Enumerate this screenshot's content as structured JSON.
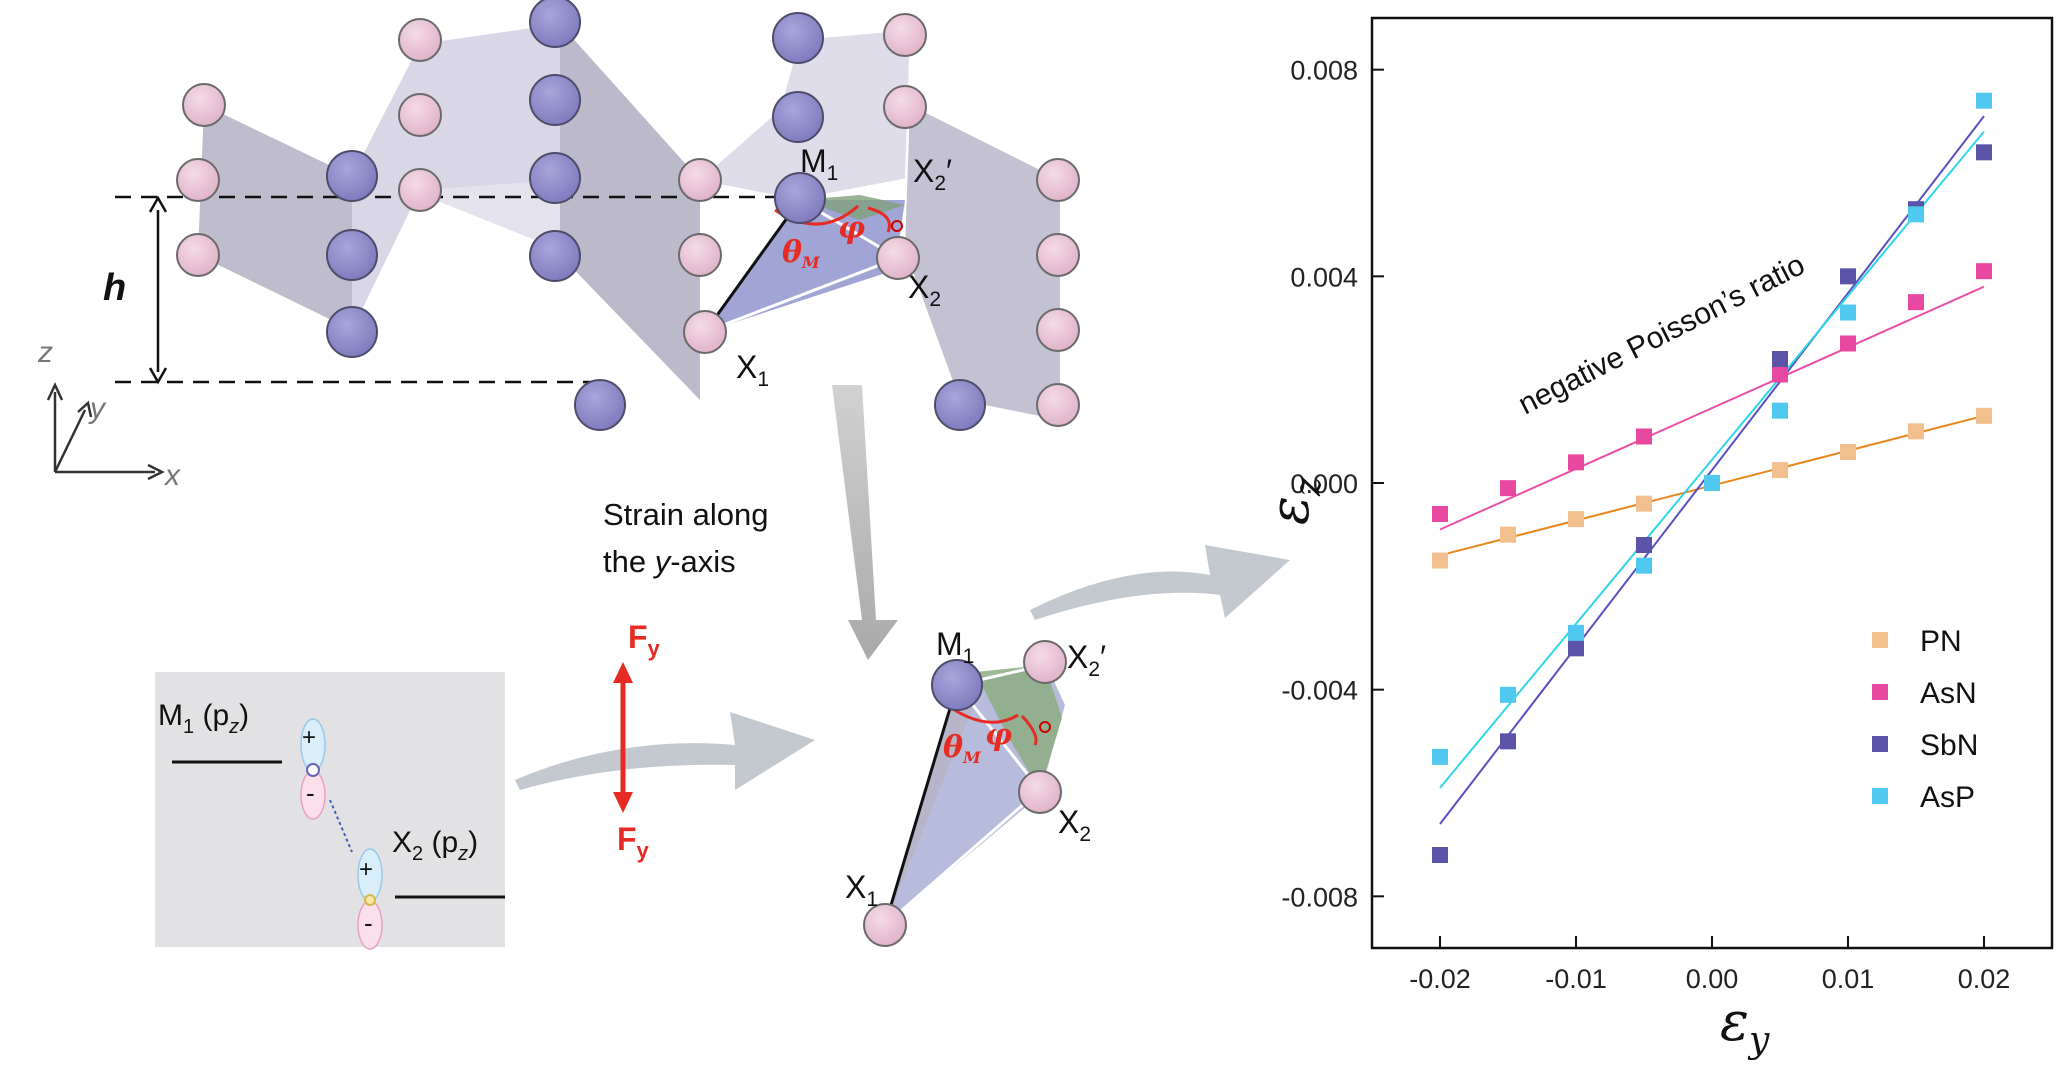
{
  "figure": {
    "top_structure": {
      "height_label": "h",
      "axes": {
        "z": "z",
        "y": "y",
        "x": "x"
      },
      "atom_labels": {
        "m1": "M",
        "m1_sub": "1",
        "x1": "X",
        "x1_sub": "1",
        "x2": "X",
        "x2_sub": "2",
        "x2p": "X",
        "x2p_sub": "2",
        "x2p_prime": "′"
      },
      "angle_labels": {
        "theta": "θ",
        "theta_sub": "M",
        "phi": "φ"
      }
    },
    "strain_text": {
      "line1": "Strain along",
      "line2_pre": "the ",
      "line2_italic": "y",
      "line2_post": "-axis"
    },
    "force": {
      "top": "F",
      "top_sub": "y",
      "bottom": "F",
      "bottom_sub": "y"
    },
    "orbital_box": {
      "m1": "M",
      "m1_sub": "1",
      "m1_orbital": "(p",
      "m1_orbital_sub": "z",
      "m1_close": ")",
      "x2": "X",
      "x2_sub": "2",
      "x2_orbital": "(p",
      "x2_orbital_sub": "z",
      "x2_close": ")",
      "plus": "+",
      "minus": "-"
    },
    "strained_structure": {
      "atom_labels": {
        "m1": "M",
        "m1_sub": "1",
        "x1": "X",
        "x1_sub": "1",
        "x2": "X",
        "x2_sub": "2",
        "x2p": "X",
        "x2p_sub": "2",
        "x2p_prime": "′"
      },
      "angle_labels": {
        "theta": "θ",
        "theta_sub": "M",
        "phi": "φ"
      }
    }
  },
  "colors": {
    "pn": "#f2c08f",
    "asn": "#e8489f",
    "sbn": "#5b53a8",
    "asp": "#4fc9ef",
    "pn_line": "#e8871e",
    "asn_line": "#ec4fa6",
    "sbn_line": "#5a4fc0",
    "asp_line": "#2fd6ea",
    "metal_atom": "#8e8bc9",
    "nonmetal_atom": "#e8c3d6",
    "force": "#e52b23"
  },
  "chart_data": {
    "type": "scatter",
    "title": "",
    "xlabel": "ε",
    "xlabel_sub": "y",
    "ylabel": "ε",
    "ylabel_sub": "z",
    "xlim": [
      -0.025,
      0.025
    ],
    "ylim": [
      -0.009,
      0.009
    ],
    "xticks": [
      -0.02,
      -0.01,
      0.0,
      0.01,
      0.02
    ],
    "xtick_labels": [
      "-0.02",
      "-0.01",
      "0.00",
      "0.01",
      "0.02"
    ],
    "yticks": [
      0.008,
      0.004,
      0.0,
      -0.004,
      -0.008
    ],
    "ytick_labels": [
      "0.008",
      "0.004",
      "0.000",
      "-0.004",
      "-0.008"
    ],
    "annotation": "negative Poisson’s ratio",
    "legend_position": "bottom-right",
    "x": [
      -0.02,
      -0.015,
      -0.01,
      -0.005,
      0.0,
      0.005,
      0.01,
      0.015,
      0.02
    ],
    "series": [
      {
        "name": "PN",
        "values": [
          -0.0015,
          -0.001,
          -0.0007,
          -0.0004,
          0.0,
          0.00025,
          0.0006,
          0.001,
          0.0013
        ],
        "fit": [
          -0.0014,
          0.0013
        ]
      },
      {
        "name": "AsN",
        "values": [
          -0.0006,
          -0.0001,
          0.0004,
          0.0009,
          null,
          0.0021,
          0.0027,
          0.0035,
          0.0041
        ],
        "fit": [
          -0.0009,
          0.0038
        ]
      },
      {
        "name": "SbN",
        "values": [
          -0.0072,
          -0.005,
          -0.0032,
          -0.0012,
          null,
          0.0024,
          0.004,
          0.0053,
          0.0064
        ],
        "fit": [
          -0.0066,
          0.0071
        ]
      },
      {
        "name": "AsP",
        "values": [
          -0.0053,
          -0.0041,
          -0.0029,
          -0.0016,
          0.0,
          0.0014,
          0.0033,
          0.0052,
          0.0074
        ],
        "fit": [
          -0.0059,
          0.0068
        ]
      }
    ]
  }
}
